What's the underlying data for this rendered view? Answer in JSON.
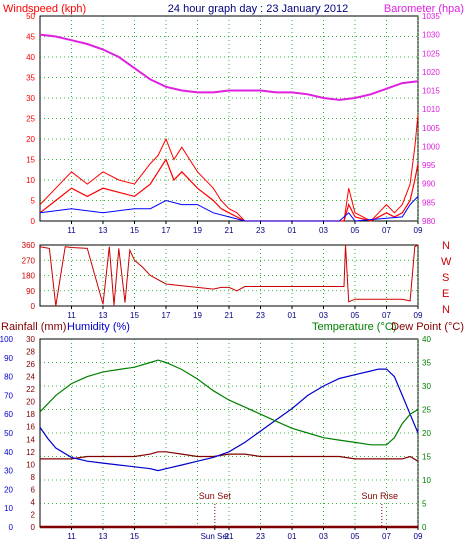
{
  "colors": {
    "wind": "#ff0000",
    "gust": "#ff0000",
    "wind_avg": "#0000ff",
    "wind_green": "#00aa00",
    "barometer": "#e020e0",
    "direction": "#cc0000",
    "temperature": "#008000",
    "dewpoint": "#800000",
    "humidity": "#0000cc",
    "rain": "#800000",
    "title": "#000080",
    "grid": "#00a000",
    "axis_left": "#000080",
    "sun": "#800000"
  },
  "chart_data": [
    {
      "type": "line",
      "title": "24 hour graph day : 23 January 2012",
      "left_axis_label": "Windspeed (kph)",
      "right_axis_label": "Barometer (hpa)",
      "ylim_left": [
        0,
        50
      ],
      "ylim_right": [
        980,
        1035
      ],
      "y_ticks_left": [
        "0",
        "5",
        "10",
        "15",
        "20",
        "25",
        "30",
        "35",
        "40",
        "45",
        "50"
      ],
      "y_ticks_right": [
        "980",
        "985",
        "990",
        "995",
        "1000",
        "1005",
        "1010",
        "1015",
        "1020",
        "1025",
        "1030",
        "1035"
      ],
      "x_ticks": [
        "11",
        "13",
        "15",
        "17",
        "19",
        "21",
        "23",
        "01",
        "03",
        "05",
        "07",
        "09"
      ],
      "series": [
        {
          "name": "Windspeed",
          "x": [
            9,
            10,
            11,
            12,
            13,
            14,
            15,
            16,
            16.5,
            17,
            17.5,
            18,
            19,
            20,
            20.5,
            21,
            21.5,
            22,
            24,
            26,
            28,
            28.3,
            28.6,
            29,
            30,
            31,
            31.5,
            32,
            32.5,
            32.8,
            33
          ],
          "y": [
            2,
            5,
            8,
            6,
            8,
            7,
            6,
            9,
            12,
            15,
            10,
            12,
            8,
            5,
            3,
            2,
            1,
            0,
            0,
            0,
            0,
            0,
            4,
            1,
            0,
            2,
            1,
            2,
            5,
            10,
            14
          ]
        },
        {
          "name": "Gust",
          "x": [
            9,
            10,
            11,
            12,
            13,
            14,
            15,
            16,
            16.5,
            17,
            17.5,
            18,
            19,
            20,
            20.5,
            21,
            21.5,
            22,
            24,
            26,
            28,
            28.3,
            28.6,
            29,
            30,
            31,
            31.5,
            32,
            32.5,
            32.8,
            33
          ],
          "y": [
            4,
            8,
            12,
            9,
            12,
            10,
            9,
            14,
            16,
            20,
            15,
            18,
            12,
            8,
            5,
            3,
            2,
            0,
            0,
            0,
            0,
            0,
            8,
            2,
            0,
            4,
            2,
            4,
            9,
            18,
            26
          ]
        },
        {
          "name": "Average",
          "x": [
            9,
            11,
            13,
            15,
            16,
            17,
            18,
            19,
            20,
            21,
            22,
            28,
            28.6,
            29,
            32,
            32.5,
            33
          ],
          "y": [
            2,
            3,
            2,
            3,
            3,
            5,
            4,
            4,
            2,
            1,
            0,
            0,
            2,
            0,
            1,
            4,
            6
          ]
        },
        {
          "name": "Barometer",
          "x": [
            9,
            10,
            11,
            12,
            13,
            14,
            15,
            16,
            17,
            18,
            19,
            20,
            21,
            22,
            23,
            24,
            25,
            26,
            27,
            28,
            29,
            30,
            31,
            32,
            33
          ],
          "y": [
            1030,
            1029.5,
            1028.5,
            1027.5,
            1026,
            1024,
            1021,
            1018,
            1016,
            1015,
            1014.5,
            1014.5,
            1015,
            1015,
            1015,
            1014.5,
            1014.5,
            1014,
            1013,
            1012.5,
            1013,
            1014,
            1015.5,
            1017,
            1017.5
          ]
        }
      ]
    },
    {
      "type": "line",
      "title": "",
      "ylim": [
        0,
        360
      ],
      "y_ticks": [
        "0",
        "90",
        "180",
        "270",
        "360"
      ],
      "compass_labels": [
        "N",
        "W",
        "S",
        "E",
        "N"
      ],
      "x_ticks": [
        "11",
        "13",
        "15",
        "17",
        "19",
        "21",
        "23",
        "01",
        "03",
        "05",
        "07",
        "09"
      ],
      "series": [
        {
          "name": "Wind direction",
          "x": [
            9,
            9.6,
            10,
            10.6,
            11,
            12,
            13,
            13.4,
            13.7,
            14,
            14.4,
            14.7,
            15,
            15.5,
            16,
            17,
            18,
            19,
            20,
            20.5,
            21,
            21.5,
            22,
            24,
            26,
            28,
            28.3,
            28.4,
            28.6,
            29,
            30,
            31,
            32,
            32.5,
            32.8,
            33
          ],
          "y": [
            350,
            340,
            0,
            350,
            345,
            340,
            10,
            350,
            5,
            340,
            20,
            330,
            270,
            230,
            180,
            130,
            120,
            110,
            100,
            110,
            110,
            90,
            115,
            115,
            115,
            115,
            115,
            360,
            25,
            40,
            40,
            40,
            40,
            30,
            350,
            360
          ]
        }
      ]
    },
    {
      "type": "line",
      "title": "",
      "left_axis_label": "Rainfall (mm)",
      "left_axis_label_2": "Humidity (%)",
      "right_axis_label": "Temperature (°C)",
      "right_axis_label_2": "Dew Point (°C)",
      "ylim_humidity": [
        0,
        100
      ],
      "ylim_rain": [
        0,
        30
      ],
      "ylim_temp": [
        0,
        40
      ],
      "y_ticks_humidity": [
        "0",
        "10",
        "20",
        "30",
        "40",
        "50",
        "60",
        "70",
        "80",
        "90",
        "100"
      ],
      "y_ticks_rain": [
        "0",
        "2",
        "4",
        "6",
        "8",
        "10",
        "12",
        "14",
        "16",
        "18",
        "20",
        "22",
        "24",
        "26",
        "28",
        "30"
      ],
      "y_ticks_temp": [
        "0",
        "5",
        "10",
        "15",
        "20",
        "25",
        "30",
        "35",
        "40"
      ],
      "x_ticks": [
        "11",
        "13",
        "15",
        "Sun Set",
        "21",
        "23",
        "01",
        "03",
        "05",
        "07",
        "09"
      ],
      "annotations": [
        "Sun Set",
        "Sun Rise"
      ],
      "sunset_hour": 20.1,
      "sunrise_hour": 30.7,
      "series": [
        {
          "name": "Temperature",
          "x": [
            9,
            10,
            11,
            12,
            13,
            14,
            15,
            16,
            16.5,
            17,
            18,
            19,
            20,
            21,
            22,
            23,
            24,
            25,
            26,
            27,
            28,
            29,
            30,
            31,
            31.5,
            32,
            32.5,
            33
          ],
          "y": [
            24.5,
            28,
            30.5,
            32,
            33,
            33.5,
            34,
            35,
            35.5,
            35,
            33.5,
            31.5,
            29,
            27,
            25.5,
            24,
            22.5,
            21,
            20,
            19,
            18.5,
            18,
            17.5,
            17.5,
            19,
            22,
            24,
            25
          ]
        },
        {
          "name": "Humidity",
          "x": [
            9,
            9.5,
            10,
            11,
            12,
            13,
            14,
            15,
            16,
            16.5,
            17,
            18,
            19,
            20,
            21,
            22,
            23,
            24,
            25,
            26,
            27,
            28,
            29,
            30,
            30.5,
            31,
            31.5,
            32,
            32.5,
            33
          ],
          "y": [
            53,
            47,
            42,
            37,
            35,
            34,
            33,
            32,
            31,
            30,
            31,
            33,
            35,
            37,
            40,
            45,
            51,
            57,
            63,
            70,
            75,
            79,
            81,
            83,
            84,
            84,
            80,
            70,
            60,
            50
          ]
        },
        {
          "name": "Dew Point",
          "x": [
            9,
            10,
            11,
            12,
            13,
            14,
            15,
            16,
            16.5,
            17,
            18,
            19,
            20,
            21,
            22,
            23,
            24,
            25,
            26,
            27,
            28,
            29,
            30,
            31,
            32,
            32.5,
            33
          ],
          "y": [
            14.5,
            14.5,
            14.5,
            15,
            15,
            15,
            15,
            15.5,
            16,
            16,
            15.5,
            15,
            15,
            15.5,
            15.5,
            15,
            15,
            15,
            15,
            15,
            15,
            14.5,
            14.5,
            14.5,
            14.5,
            15,
            14
          ]
        },
        {
          "name": "Rainfall",
          "x": [
            9,
            33
          ],
          "y": [
            0,
            0
          ]
        }
      ]
    }
  ]
}
